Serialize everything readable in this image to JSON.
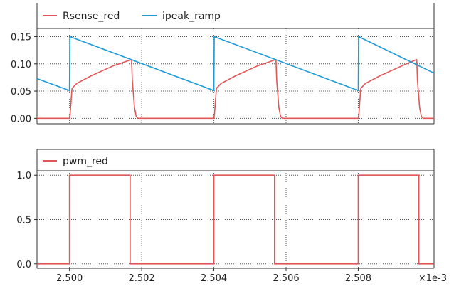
{
  "chart_data": [
    {
      "type": "line",
      "title": "",
      "xlabel": "",
      "ylabel": "",
      "xlim": [
        2.4991,
        2.5101
      ],
      "ylim": [
        -0.01,
        0.165
      ],
      "yticks": [
        "0.00",
        "0.05",
        "0.10",
        "0.15"
      ],
      "grid": true,
      "legend_position": "top",
      "series": [
        {
          "name": "Rsense_red",
          "color": "#e15759",
          "x": [
            2.4991,
            2.5,
            2.50002,
            2.50007,
            2.5002,
            2.5006,
            2.5012,
            2.50172,
            2.50174,
            2.5018,
            2.50185,
            2.5019,
            2.504,
            2.50402,
            2.50407,
            2.5042,
            2.5046,
            2.5052,
            2.50572,
            2.50574,
            2.5058,
            2.50585,
            2.5059,
            2.508,
            2.50802,
            2.50807,
            2.5082,
            2.5086,
            2.5092,
            2.50962,
            2.50964,
            2.5097,
            2.50975,
            2.5098,
            2.5101
          ],
          "values": [
            0.0,
            0.0,
            0.01,
            0.055,
            0.064,
            0.078,
            0.096,
            0.108,
            0.07,
            0.02,
            0.003,
            0.0,
            0.0,
            0.01,
            0.055,
            0.064,
            0.078,
            0.096,
            0.108,
            0.07,
            0.02,
            0.003,
            0.0,
            0.0,
            0.01,
            0.055,
            0.064,
            0.078,
            0.096,
            0.108,
            0.07,
            0.02,
            0.003,
            0.0,
            0.0
          ]
        },
        {
          "name": "ipeak_ramp",
          "color": "#1f9ad6",
          "x": [
            2.4991,
            2.5,
            2.50001,
            2.504,
            2.50401,
            2.508,
            2.50801,
            2.5101
          ],
          "values": [
            0.073,
            0.051,
            0.15,
            0.051,
            0.15,
            0.051,
            0.15,
            0.083
          ]
        }
      ]
    },
    {
      "type": "line",
      "title": "",
      "xlabel": "",
      "ylabel": "",
      "xlim": [
        2.4991,
        2.5101
      ],
      "ylim": [
        -0.05,
        1.05
      ],
      "yticks": [
        "0.0",
        "0.5",
        "1.0"
      ],
      "grid": true,
      "legend_position": "top",
      "series": [
        {
          "name": "pwm_red",
          "color": "#e15759",
          "x": [
            2.4991,
            2.5,
            2.5,
            2.50168,
            2.50168,
            2.504,
            2.504,
            2.50568,
            2.50568,
            2.508,
            2.508,
            2.50968,
            2.50968,
            2.5101
          ],
          "values": [
            0,
            0,
            1,
            1,
            0,
            0,
            1,
            1,
            0,
            0,
            1,
            1,
            0,
            0
          ]
        }
      ]
    }
  ],
  "x_axis": {
    "tick_values": [
      2.5,
      2.502,
      2.504,
      2.506,
      2.508
    ],
    "tick_labels": [
      "2.500",
      "2.502",
      "2.504",
      "2.506",
      "2.508"
    ],
    "multiplier_label": "×1e-3"
  }
}
